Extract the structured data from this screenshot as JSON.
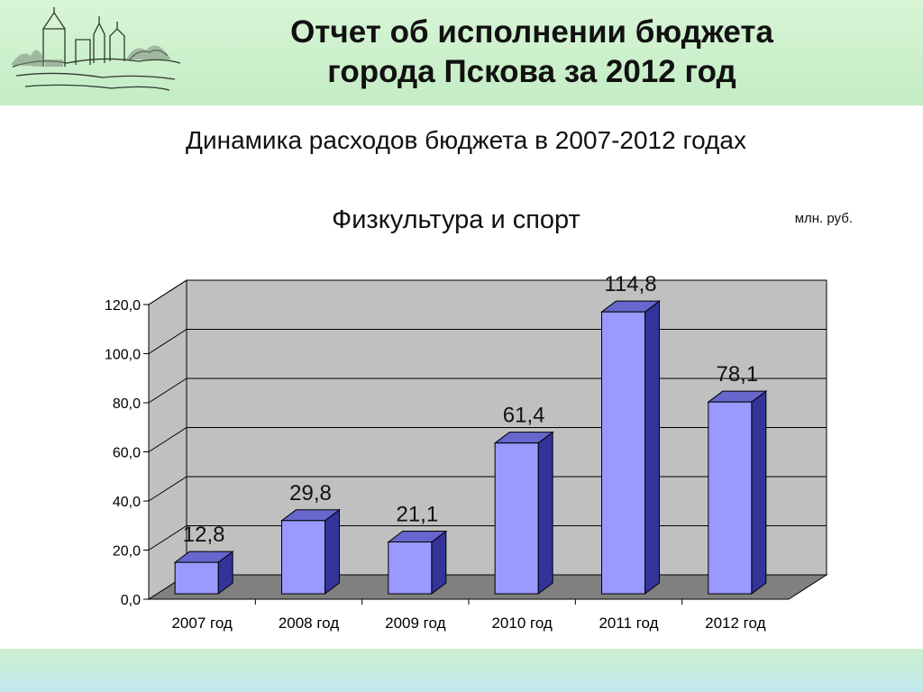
{
  "header": {
    "title_line1": "Отчет об исполнении бюджета",
    "title_line2": "города Пскова за 2012 год",
    "band_color": "#c8eec8",
    "logo_icon": "pskov-kremlin-sketch-icon"
  },
  "section_subtitle": "Динамика расходов бюджета в 2007-2012 годах",
  "chart_data": {
    "type": "bar",
    "title": "Физкультура и спорт",
    "unit_label": "млн. руб.",
    "categories": [
      "2007 год",
      "2008 год",
      "2009 год",
      "2010 год",
      "2011 год",
      "2012 год"
    ],
    "values": [
      12.8,
      29.8,
      21.1,
      61.4,
      114.8,
      78.1
    ],
    "data_labels": [
      "12,8",
      "29,8",
      "21,1",
      "61,4",
      "114,8",
      "78,1"
    ],
    "y_ticks": [
      "0,0",
      "20,0",
      "40,0",
      "60,0",
      "80,0",
      "100,0",
      "120,0"
    ],
    "ylim": [
      0,
      120
    ],
    "grid": true,
    "bar_style": "3d",
    "bar_color": "#9999ff",
    "bar_side_color": "#333399",
    "bar_top_color": "#6666cc",
    "wall_color": "#c0c0c0",
    "floor_color": "#808080"
  }
}
